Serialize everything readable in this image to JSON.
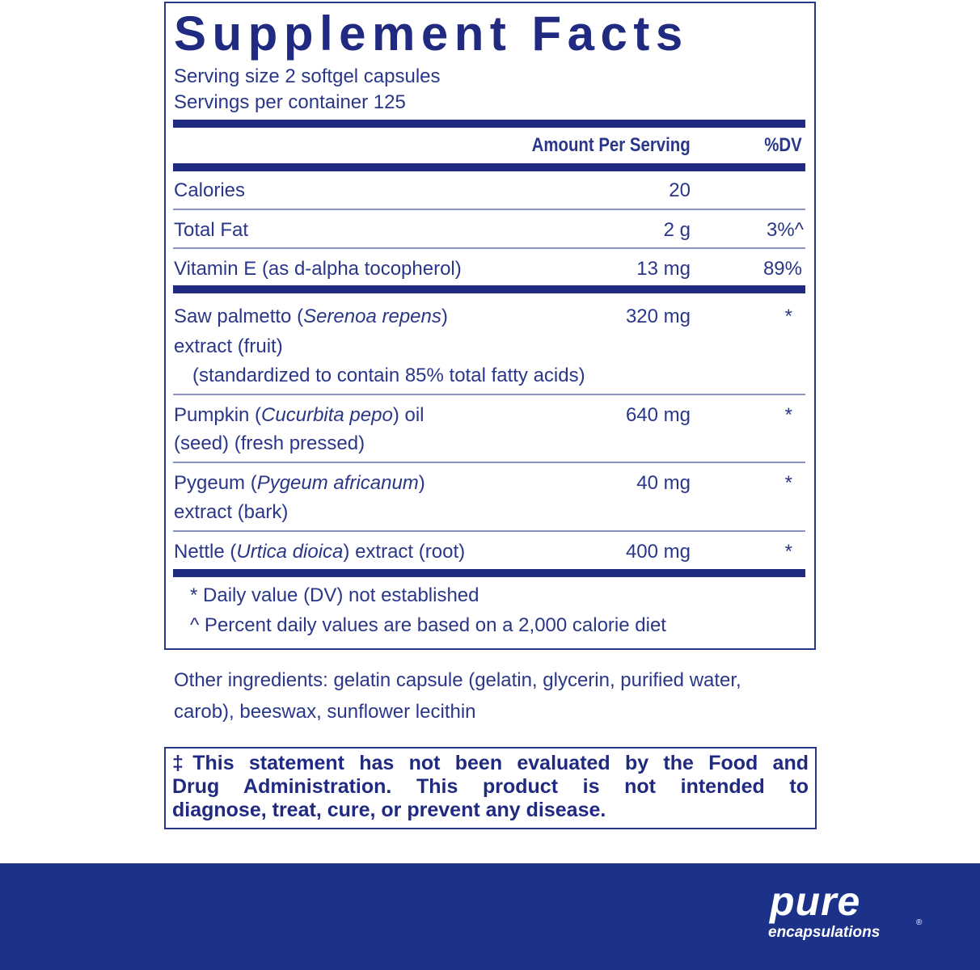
{
  "title": "Supplement Facts",
  "serving_size": "Serving size  2 softgel capsules",
  "servings_per_container": "Servings per container  125",
  "header": {
    "amount": "Amount Per Serving",
    "dv": "%DV"
  },
  "nutrients": [
    {
      "name": "Calories",
      "amount": "20",
      "dv": ""
    },
    {
      "name": "Total Fat",
      "amount": "2 g",
      "dv": "3%^"
    },
    {
      "name": "Vitamin E (as d-alpha tocopherol)",
      "amount": "13 mg",
      "dv": "89%"
    }
  ],
  "ingredients": [
    {
      "pre": "Saw palmetto (",
      "latin": "Serenoa repens",
      "post": ")",
      "line2": "extract (fruit)",
      "line3": "(standardized to contain 85% total fatty acids)",
      "amount": "320 mg",
      "dv": "*"
    },
    {
      "pre": "Pumpkin (",
      "latin": "Cucurbita pepo",
      "post": ") oil",
      "line2": "(seed) (fresh pressed)",
      "amount": "640 mg",
      "dv": "*"
    },
    {
      "pre": "Pygeum (",
      "latin": "Pygeum africanum",
      "post": ")",
      "line2": "extract (bark)",
      "amount": "40 mg",
      "dv": "*"
    },
    {
      "pre": "Nettle (",
      "latin": "Urtica dioica",
      "post": ") extract (root)",
      "amount": "400 mg",
      "dv": "*"
    }
  ],
  "footnotes": [
    "*  Daily value (DV) not established",
    "^  Percent daily values are based on a 2,000 calorie diet"
  ],
  "other_ingredients": [
    "Other ingredients: gelatin capsule (gelatin, glycerin, purified water,",
    "carob), beeswax, sunflower lecithin"
  ],
  "disclaimer": [
    "‡This statement has not been evaluated by the Food and",
    "Drug Administration. This product is not intended to",
    "diagnose, treat, cure, or prevent any disease."
  ],
  "brand": {
    "line1": "pure",
    "line2": "encapsulations",
    "reg": "®"
  },
  "colors": {
    "navy": "#1f2a80",
    "banner": "#1b3288"
  }
}
